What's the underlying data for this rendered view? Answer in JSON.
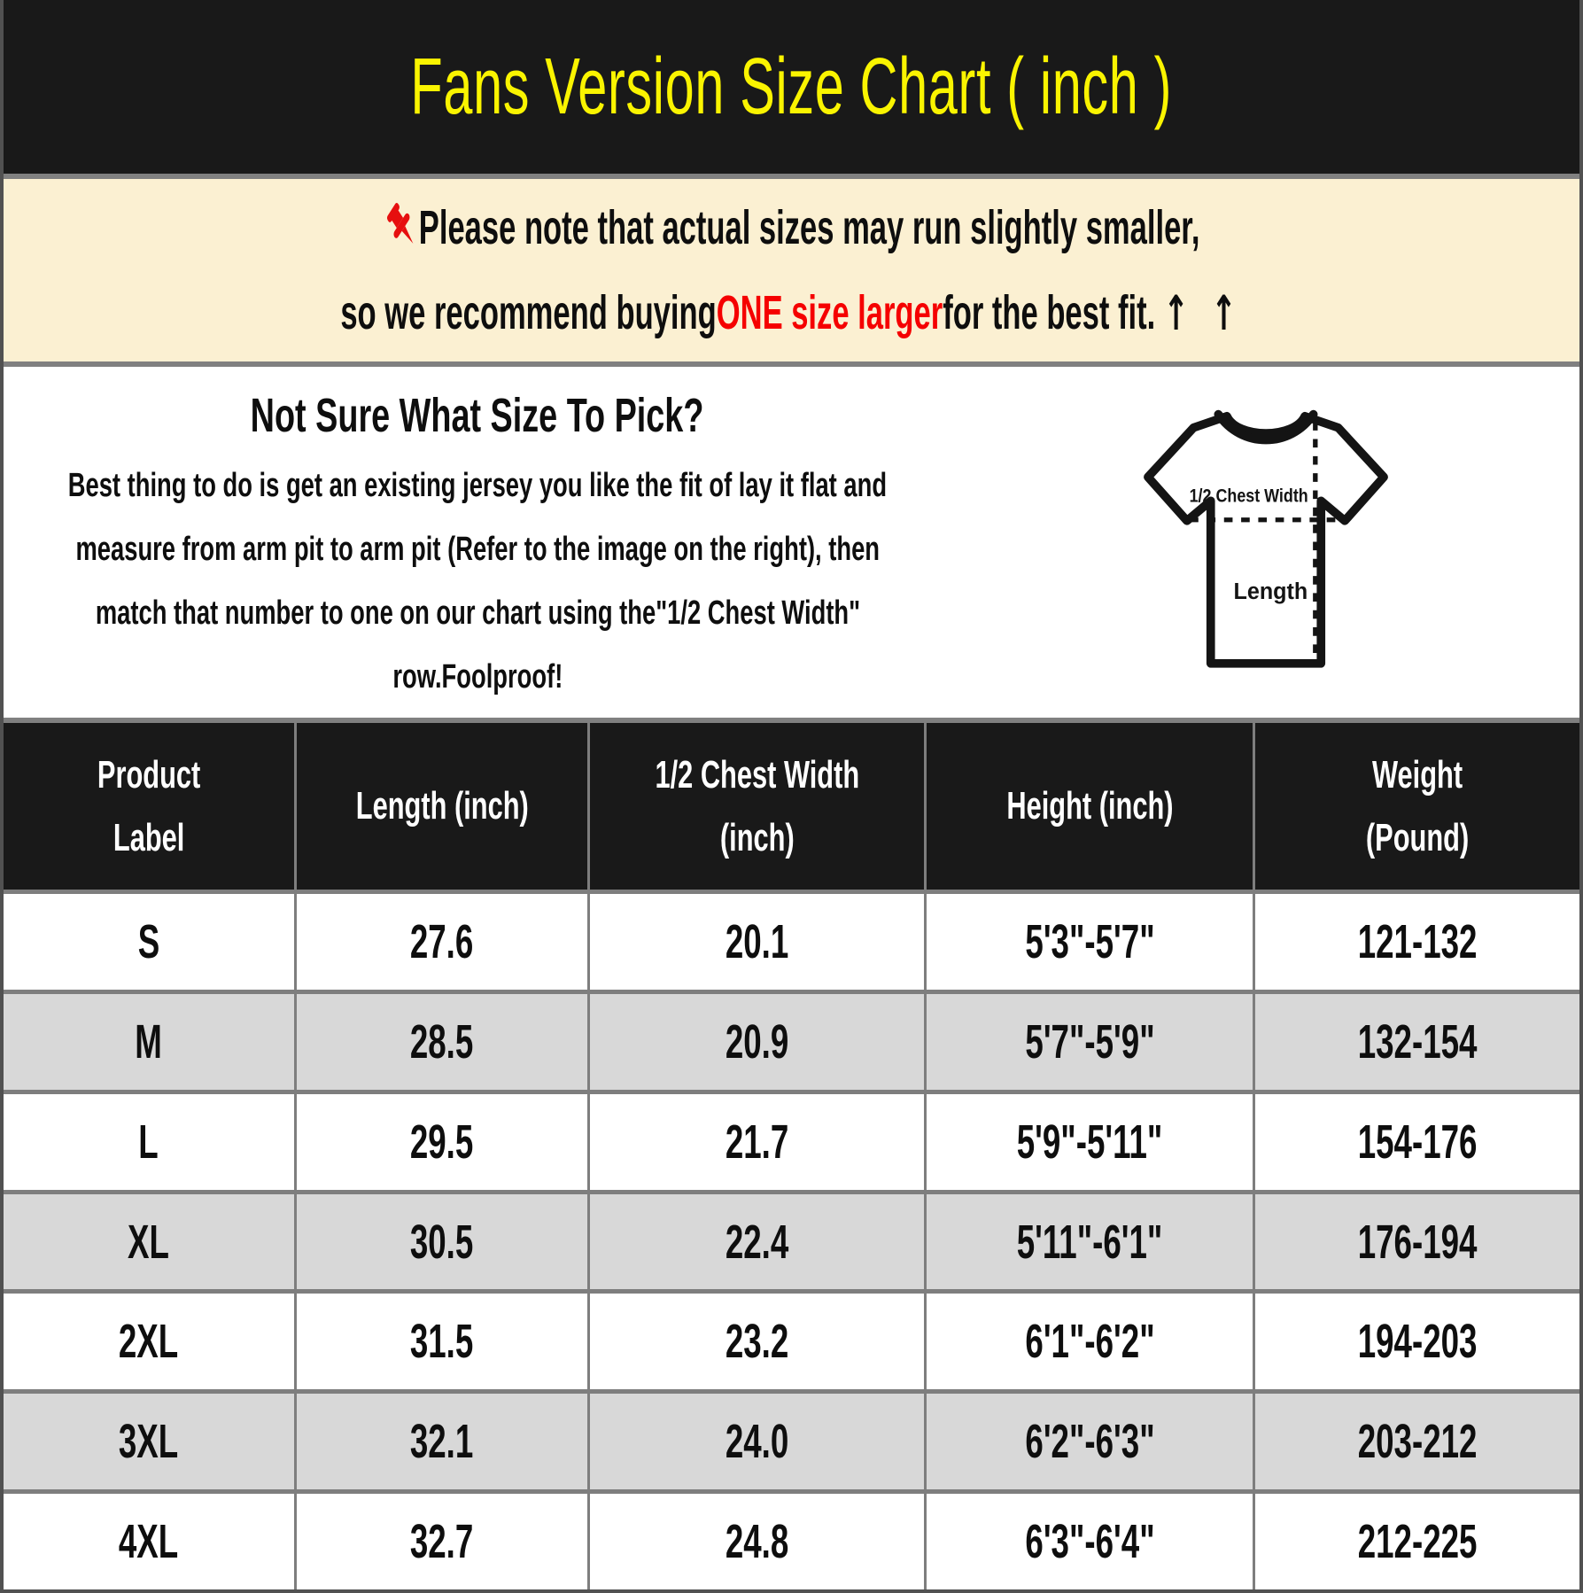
{
  "header": {
    "title": "Fans Version Size Chart ( inch )"
  },
  "notice": {
    "line1": "Please note that actual sizes may run slightly smaller,",
    "line2_before": "so we recommend buying ",
    "line2_highlight": "ONE size larger",
    "line2_after": " for the best fit.",
    "arrows": "↑ ↑"
  },
  "guide": {
    "heading": "Not Sure What Size To Pick?",
    "body_lines": [
      "Best thing to do is get an existing jersey you like the fit of lay it flat and",
      "measure from arm pit to arm pit (Refer to the image on the right), then",
      "match that number to one on our chart using the\"1/2 Chest Width\"",
      "row.Foolproof!"
    ],
    "diagram_labels": {
      "chest": "1/2 Chest Width",
      "length": "Length"
    }
  },
  "size_table": {
    "columns": [
      {
        "lines": [
          "Product",
          "Label"
        ]
      },
      {
        "lines": [
          "Length (inch)"
        ]
      },
      {
        "lines": [
          "1/2 Chest Width",
          "(inch)"
        ]
      },
      {
        "lines": [
          "Height (inch)"
        ]
      },
      {
        "lines": [
          "Weight",
          "(Pound)"
        ]
      }
    ],
    "rows": [
      {
        "label": "S",
        "length": "27.6",
        "chest": "20.1",
        "height": "5'3\"-5'7\"",
        "weight": "121-132"
      },
      {
        "label": "M",
        "length": "28.5",
        "chest": "20.9",
        "height": "5'7\"-5'9\"",
        "weight": "132-154"
      },
      {
        "label": "L",
        "length": "29.5",
        "chest": "21.7",
        "height": "5'9\"-5'11\"",
        "weight": "154-176"
      },
      {
        "label": "XL",
        "length": "30.5",
        "chest": "22.4",
        "height": "5'11\"-6'1\"",
        "weight": "176-194"
      },
      {
        "label": "2XL",
        "length": "31.5",
        "chest": "23.2",
        "height": "6'1\"-6'2\"",
        "weight": "194-203"
      },
      {
        "label": "3XL",
        "length": "32.1",
        "chest": "24.0",
        "height": "6'2\"-6'3\"",
        "weight": "203-212"
      },
      {
        "label": "4XL",
        "length": "32.7",
        "chest": "24.8",
        "height": "6'3\"-6'4\"",
        "weight": "212-225"
      }
    ]
  },
  "colors": {
    "title_yellow": "#FAF400",
    "highlight_red": "#F50000",
    "notice_bg": "#FBF0D2",
    "header_bg": "#191919",
    "alt_row_gray": "#D8D8D8",
    "divider_gray": "#808080"
  }
}
